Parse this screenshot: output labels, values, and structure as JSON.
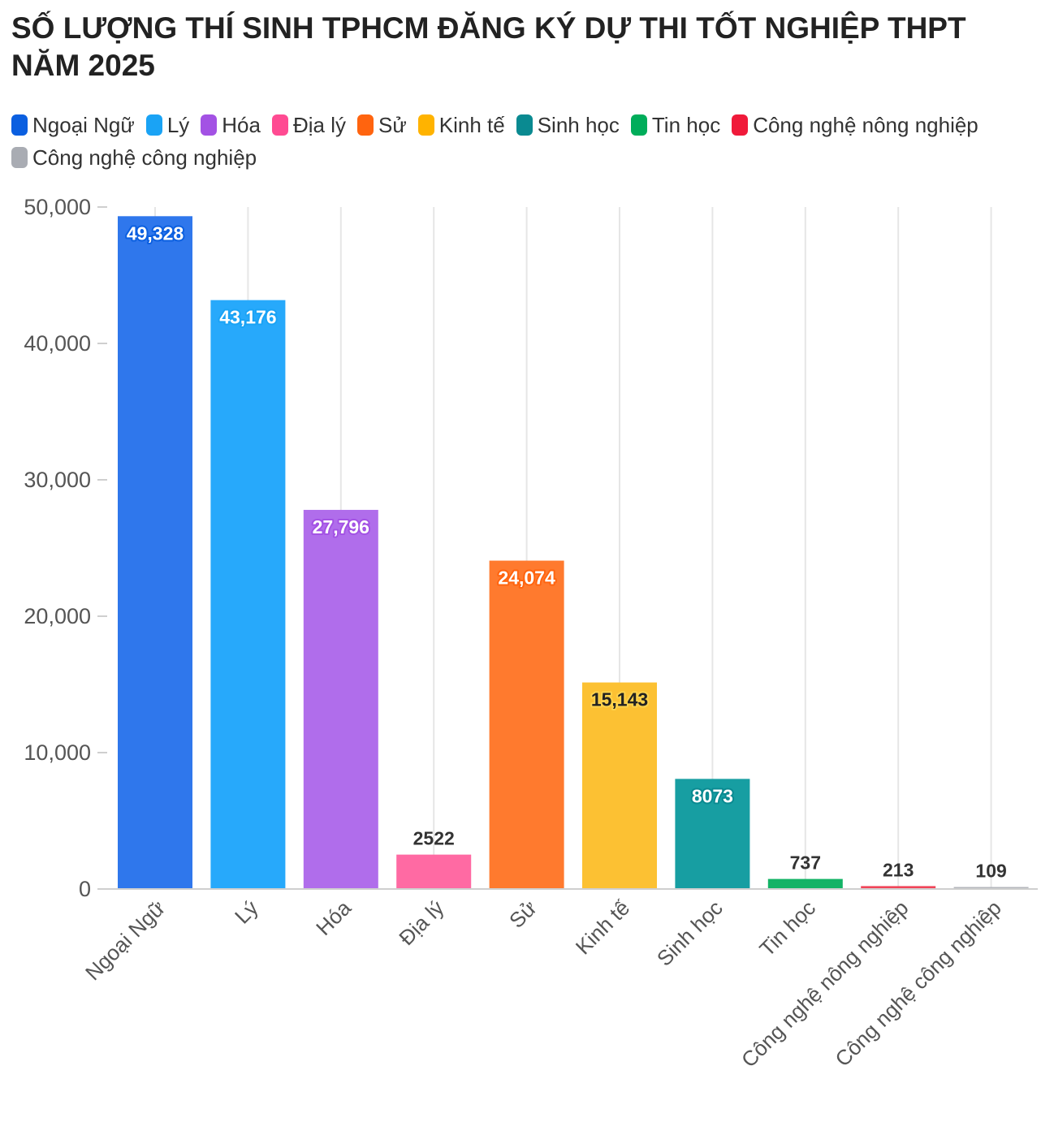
{
  "chart_data": {
    "type": "bar",
    "title": "SỐ LƯỢNG THÍ SINH TPHCM ĐĂNG KÝ DỰ THI TỐT NGHIỆP THPT NĂM 2025",
    "xlabel": "",
    "ylabel": "",
    "categories": [
      "Ngoại Ngữ",
      "Lý",
      "Hóa",
      "Địa lý",
      "Sử",
      "Kinh tế",
      "Sinh học",
      "Tin học",
      "Công nghệ nông nghiệp",
      "Công nghệ công nghiệp"
    ],
    "values": [
      49328,
      43176,
      27796,
      2522,
      24074,
      15143,
      8073,
      737,
      213,
      109
    ],
    "value_labels": [
      "49,328",
      "43,176",
      "27,796",
      "2522",
      "24,074",
      "15,143",
      "8073",
      "737",
      "213",
      "109"
    ],
    "colors": [
      "#2f77ec",
      "#27a9fb",
      "#b06deb",
      "#ff6aa3",
      "#ff7a2e",
      "#fcc133",
      "#179ea2",
      "#13b366",
      "#f04458",
      "#b4b7bd"
    ],
    "legend_colors": [
      "#0b5fe0",
      "#1aa3f5",
      "#a352e4",
      "#ff4b92",
      "#ff640f",
      "#ffb300",
      "#0a8a91",
      "#00ad5a",
      "#f01a3a",
      "#a9acb3"
    ],
    "ylim": [
      0,
      50000
    ],
    "yticks": [
      0,
      10000,
      20000,
      30000,
      40000,
      50000
    ],
    "ytick_labels": [
      "0",
      "10,000",
      "20,000",
      "30,000",
      "40,000",
      "50,000"
    ],
    "grid": true,
    "legend_position": "top"
  }
}
